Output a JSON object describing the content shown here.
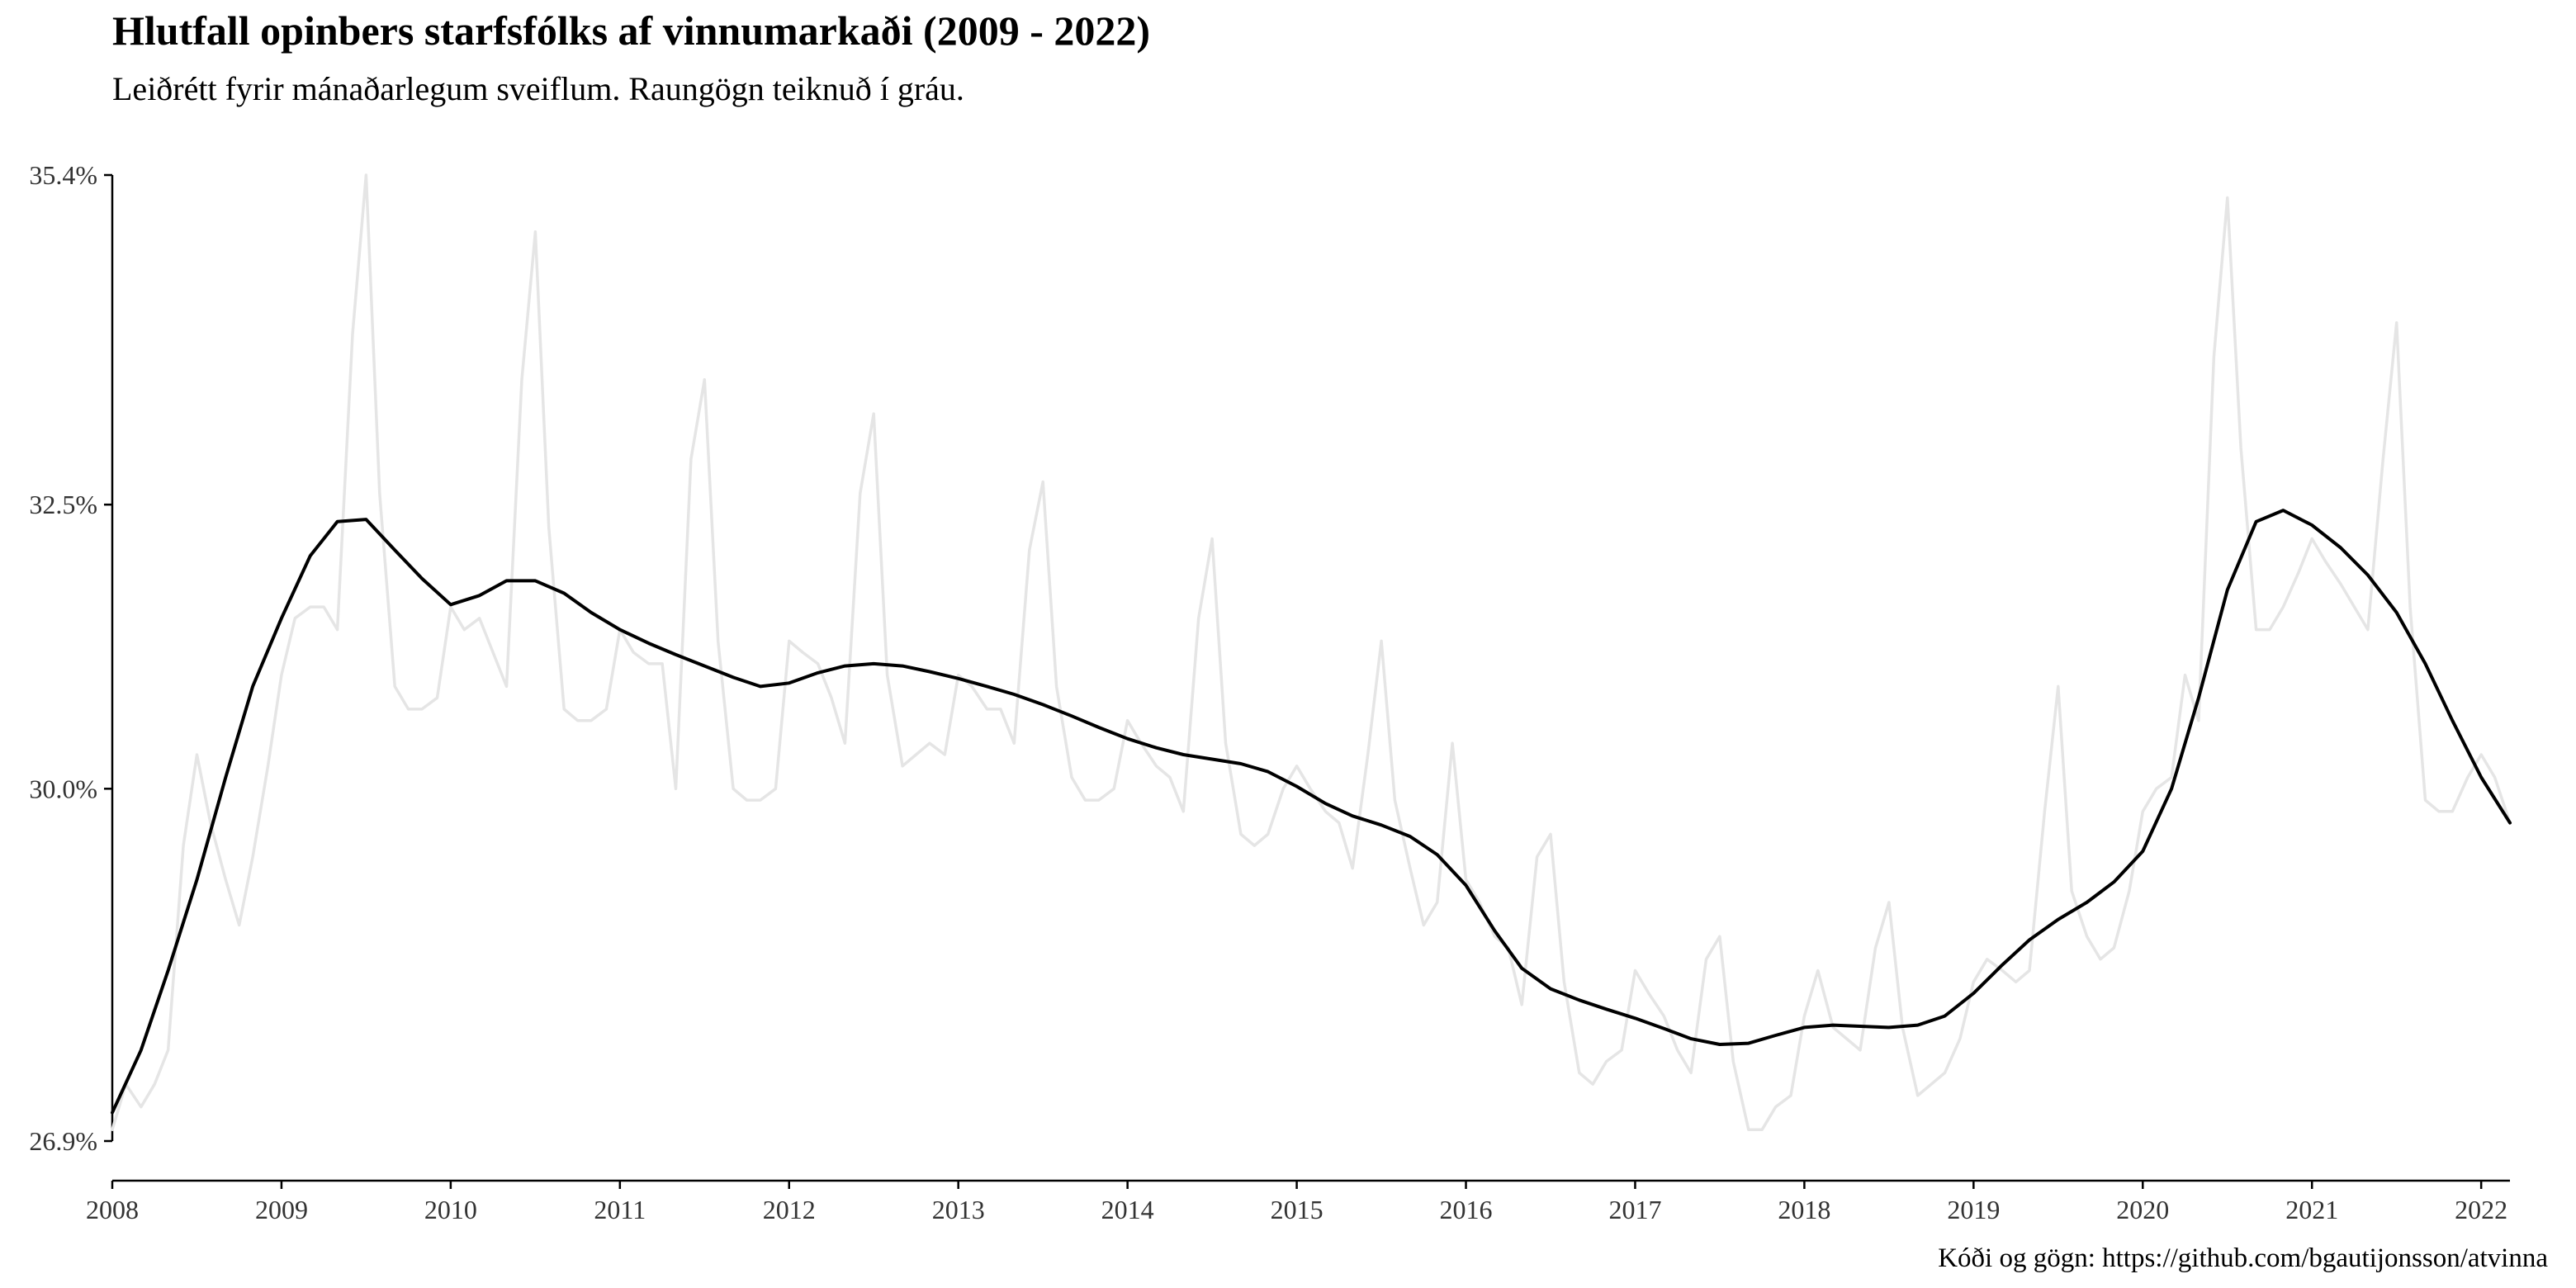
{
  "chart_data": {
    "type": "line",
    "title": "Hlutfall opinbers starfsfólks af vinnumarkaði (2009 - 2022)",
    "subtitle": "Leiðrétt fyrir mánaðarlegum sveiflum. Raungögn teiknuð í gráu.",
    "caption": "Kóði og gögn: https://github.com/bgautijonsson/atvinna",
    "xlabel": "",
    "ylabel": "",
    "x_unit": "year (decimal)",
    "xlim": [
      2008,
      2022.17
    ],
    "ylim": [
      26.9,
      35.4
    ],
    "x_ticks": [
      {
        "value": 2008,
        "label": "2008"
      },
      {
        "value": 2009,
        "label": "2009"
      },
      {
        "value": 2010,
        "label": "2010"
      },
      {
        "value": 2011,
        "label": "2011"
      },
      {
        "value": 2012,
        "label": "2012"
      },
      {
        "value": 2013,
        "label": "2013"
      },
      {
        "value": 2014,
        "label": "2014"
      },
      {
        "value": 2015,
        "label": "2015"
      },
      {
        "value": 2016,
        "label": "2016"
      },
      {
        "value": 2017,
        "label": "2017"
      },
      {
        "value": 2018,
        "label": "2018"
      },
      {
        "value": 2019,
        "label": "2019"
      },
      {
        "value": 2020,
        "label": "2020"
      },
      {
        "value": 2021,
        "label": "2021"
      },
      {
        "value": 2022,
        "label": "2022"
      }
    ],
    "y_ticks": [
      {
        "value": 26.9,
        "label": "26.9%"
      },
      {
        "value": 30.0,
        "label": "30.0%"
      },
      {
        "value": 32.5,
        "label": "32.5%"
      },
      {
        "value": 35.4,
        "label": "35.4%"
      }
    ],
    "grid": false,
    "series": [
      {
        "role": "raw",
        "color": "#e5e5e5",
        "points": [
          [
            2008.0,
            27.0
          ],
          [
            2008.08,
            27.4
          ],
          [
            2008.17,
            27.2
          ],
          [
            2008.25,
            27.4
          ],
          [
            2008.33,
            27.7
          ],
          [
            2008.42,
            29.5
          ],
          [
            2008.5,
            30.3
          ],
          [
            2008.58,
            29.7
          ],
          [
            2008.67,
            29.2
          ],
          [
            2008.75,
            28.8
          ],
          [
            2008.83,
            29.4
          ],
          [
            2008.92,
            30.2
          ],
          [
            2009.0,
            31.0
          ],
          [
            2009.08,
            31.5
          ],
          [
            2009.17,
            31.6
          ],
          [
            2009.25,
            31.6
          ],
          [
            2009.33,
            31.4
          ],
          [
            2009.42,
            34.0
          ],
          [
            2009.5,
            35.4
          ],
          [
            2009.58,
            32.6
          ],
          [
            2009.67,
            30.9
          ],
          [
            2009.75,
            30.7
          ],
          [
            2009.83,
            30.7
          ],
          [
            2009.92,
            30.8
          ],
          [
            2010.0,
            31.6
          ],
          [
            2010.08,
            31.4
          ],
          [
            2010.17,
            31.5
          ],
          [
            2010.25,
            31.2
          ],
          [
            2010.33,
            30.9
          ],
          [
            2010.42,
            33.6
          ],
          [
            2010.5,
            34.9
          ],
          [
            2010.58,
            32.3
          ],
          [
            2010.67,
            30.7
          ],
          [
            2010.75,
            30.6
          ],
          [
            2010.83,
            30.6
          ],
          [
            2010.92,
            30.7
          ],
          [
            2011.0,
            31.4
          ],
          [
            2011.08,
            31.2
          ],
          [
            2011.17,
            31.1
          ],
          [
            2011.25,
            31.1
          ],
          [
            2011.33,
            30.0
          ],
          [
            2011.42,
            32.9
          ],
          [
            2011.5,
            33.6
          ],
          [
            2011.58,
            31.3
          ],
          [
            2011.67,
            30.0
          ],
          [
            2011.75,
            29.9
          ],
          [
            2011.83,
            29.9
          ],
          [
            2011.92,
            30.0
          ],
          [
            2012.0,
            31.3
          ],
          [
            2012.08,
            31.2
          ],
          [
            2012.17,
            31.1
          ],
          [
            2012.25,
            30.8
          ],
          [
            2012.33,
            30.4
          ],
          [
            2012.42,
            32.6
          ],
          [
            2012.5,
            33.3
          ],
          [
            2012.58,
            31.0
          ],
          [
            2012.67,
            30.2
          ],
          [
            2012.75,
            30.3
          ],
          [
            2012.83,
            30.4
          ],
          [
            2012.92,
            30.3
          ],
          [
            2013.0,
            31.0
          ],
          [
            2013.08,
            30.9
          ],
          [
            2013.17,
            30.7
          ],
          [
            2013.25,
            30.7
          ],
          [
            2013.33,
            30.4
          ],
          [
            2013.42,
            32.1
          ],
          [
            2013.5,
            32.7
          ],
          [
            2013.58,
            30.9
          ],
          [
            2013.67,
            30.1
          ],
          [
            2013.75,
            29.9
          ],
          [
            2013.83,
            29.9
          ],
          [
            2013.92,
            30.0
          ],
          [
            2014.0,
            30.6
          ],
          [
            2014.08,
            30.4
          ],
          [
            2014.17,
            30.2
          ],
          [
            2014.25,
            30.1
          ],
          [
            2014.33,
            29.8
          ],
          [
            2014.42,
            31.5
          ],
          [
            2014.5,
            32.2
          ],
          [
            2014.58,
            30.4
          ],
          [
            2014.67,
            29.6
          ],
          [
            2014.75,
            29.5
          ],
          [
            2014.83,
            29.6
          ],
          [
            2014.92,
            30.0
          ],
          [
            2015.0,
            30.2
          ],
          [
            2015.08,
            30.0
          ],
          [
            2015.17,
            29.8
          ],
          [
            2015.25,
            29.7
          ],
          [
            2015.33,
            29.3
          ],
          [
            2015.42,
            30.3
          ],
          [
            2015.5,
            31.3
          ],
          [
            2015.58,
            29.9
          ],
          [
            2015.67,
            29.3
          ],
          [
            2015.75,
            28.8
          ],
          [
            2015.83,
            29.0
          ],
          [
            2015.92,
            30.4
          ],
          [
            2016.0,
            29.2
          ],
          [
            2016.08,
            29.0
          ],
          [
            2016.17,
            28.7
          ],
          [
            2016.25,
            28.6
          ],
          [
            2016.33,
            28.1
          ],
          [
            2016.42,
            29.4
          ],
          [
            2016.5,
            29.6
          ],
          [
            2016.58,
            28.3
          ],
          [
            2016.67,
            27.5
          ],
          [
            2016.75,
            27.4
          ],
          [
            2016.83,
            27.6
          ],
          [
            2016.92,
            27.7
          ],
          [
            2017.0,
            28.4
          ],
          [
            2017.08,
            28.2
          ],
          [
            2017.17,
            28.0
          ],
          [
            2017.25,
            27.7
          ],
          [
            2017.33,
            27.5
          ],
          [
            2017.42,
            28.5
          ],
          [
            2017.5,
            28.7
          ],
          [
            2017.58,
            27.6
          ],
          [
            2017.67,
            27.0
          ],
          [
            2017.75,
            27.0
          ],
          [
            2017.83,
            27.2
          ],
          [
            2017.92,
            27.3
          ],
          [
            2018.0,
            28.0
          ],
          [
            2018.08,
            28.4
          ],
          [
            2018.17,
            27.9
          ],
          [
            2018.25,
            27.8
          ],
          [
            2018.33,
            27.7
          ],
          [
            2018.42,
            28.6
          ],
          [
            2018.5,
            29.0
          ],
          [
            2018.58,
            27.9
          ],
          [
            2018.67,
            27.3
          ],
          [
            2018.75,
            27.4
          ],
          [
            2018.83,
            27.5
          ],
          [
            2018.92,
            27.8
          ],
          [
            2019.0,
            28.3
          ],
          [
            2019.08,
            28.5
          ],
          [
            2019.17,
            28.4
          ],
          [
            2019.25,
            28.3
          ],
          [
            2019.33,
            28.4
          ],
          [
            2019.42,
            29.8
          ],
          [
            2019.5,
            30.9
          ],
          [
            2019.58,
            29.1
          ],
          [
            2019.67,
            28.7
          ],
          [
            2019.75,
            28.5
          ],
          [
            2019.83,
            28.6
          ],
          [
            2019.92,
            29.1
          ],
          [
            2020.0,
            29.8
          ],
          [
            2020.08,
            30.0
          ],
          [
            2020.17,
            30.1
          ],
          [
            2020.25,
            31.0
          ],
          [
            2020.33,
            30.6
          ],
          [
            2020.42,
            33.8
          ],
          [
            2020.5,
            35.2
          ],
          [
            2020.58,
            33.0
          ],
          [
            2020.67,
            31.4
          ],
          [
            2020.75,
            31.4
          ],
          [
            2020.83,
            31.6
          ],
          [
            2020.92,
            31.9
          ],
          [
            2021.0,
            32.2
          ],
          [
            2021.08,
            32.0
          ],
          [
            2021.17,
            31.8
          ],
          [
            2021.25,
            31.6
          ],
          [
            2021.33,
            31.4
          ],
          [
            2021.42,
            32.9
          ],
          [
            2021.5,
            34.1
          ],
          [
            2021.58,
            31.6
          ],
          [
            2021.67,
            29.9
          ],
          [
            2021.75,
            29.8
          ],
          [
            2021.83,
            29.8
          ],
          [
            2021.92,
            30.1
          ],
          [
            2022.0,
            30.3
          ],
          [
            2022.08,
            30.1
          ],
          [
            2022.17,
            29.7
          ]
        ]
      },
      {
        "role": "trend",
        "color": "#000000",
        "points": [
          [
            2008.0,
            27.15
          ],
          [
            2008.17,
            27.7
          ],
          [
            2008.33,
            28.4
          ],
          [
            2008.5,
            29.2
          ],
          [
            2008.67,
            30.1
          ],
          [
            2008.83,
            30.9
          ],
          [
            2009.0,
            31.5
          ],
          [
            2009.17,
            32.05
          ],
          [
            2009.33,
            32.35
          ],
          [
            2009.5,
            32.37
          ],
          [
            2009.67,
            32.1
          ],
          [
            2009.83,
            31.85
          ],
          [
            2010.0,
            31.62
          ],
          [
            2010.17,
            31.7
          ],
          [
            2010.33,
            31.83
          ],
          [
            2010.5,
            31.83
          ],
          [
            2010.67,
            31.72
          ],
          [
            2010.83,
            31.55
          ],
          [
            2011.0,
            31.4
          ],
          [
            2011.17,
            31.28
          ],
          [
            2011.33,
            31.18
          ],
          [
            2011.5,
            31.08
          ],
          [
            2011.67,
            30.98
          ],
          [
            2011.83,
            30.9
          ],
          [
            2012.0,
            30.93
          ],
          [
            2012.17,
            31.02
          ],
          [
            2012.33,
            31.08
          ],
          [
            2012.5,
            31.1
          ],
          [
            2012.67,
            31.08
          ],
          [
            2012.83,
            31.03
          ],
          [
            2013.0,
            30.97
          ],
          [
            2013.17,
            30.9
          ],
          [
            2013.33,
            30.83
          ],
          [
            2013.5,
            30.74
          ],
          [
            2013.67,
            30.64
          ],
          [
            2013.83,
            30.54
          ],
          [
            2014.0,
            30.44
          ],
          [
            2014.17,
            30.36
          ],
          [
            2014.33,
            30.3
          ],
          [
            2014.5,
            30.26
          ],
          [
            2014.67,
            30.22
          ],
          [
            2014.83,
            30.15
          ],
          [
            2015.0,
            30.02
          ],
          [
            2015.17,
            29.87
          ],
          [
            2015.33,
            29.76
          ],
          [
            2015.5,
            29.68
          ],
          [
            2015.67,
            29.58
          ],
          [
            2015.83,
            29.42
          ],
          [
            2016.0,
            29.15
          ],
          [
            2016.17,
            28.75
          ],
          [
            2016.33,
            28.42
          ],
          [
            2016.5,
            28.24
          ],
          [
            2016.67,
            28.14
          ],
          [
            2016.83,
            28.06
          ],
          [
            2017.0,
            27.98
          ],
          [
            2017.17,
            27.89
          ],
          [
            2017.33,
            27.8
          ],
          [
            2017.5,
            27.75
          ],
          [
            2017.67,
            27.76
          ],
          [
            2017.83,
            27.83
          ],
          [
            2018.0,
            27.9
          ],
          [
            2018.17,
            27.92
          ],
          [
            2018.33,
            27.91
          ],
          [
            2018.5,
            27.9
          ],
          [
            2018.67,
            27.92
          ],
          [
            2018.83,
            28.0
          ],
          [
            2019.0,
            28.2
          ],
          [
            2019.17,
            28.45
          ],
          [
            2019.33,
            28.67
          ],
          [
            2019.5,
            28.85
          ],
          [
            2019.67,
            29.0
          ],
          [
            2019.83,
            29.18
          ],
          [
            2020.0,
            29.45
          ],
          [
            2020.17,
            30.0
          ],
          [
            2020.33,
            30.8
          ],
          [
            2020.5,
            31.75
          ],
          [
            2020.67,
            32.35
          ],
          [
            2020.83,
            32.45
          ],
          [
            2021.0,
            32.32
          ],
          [
            2021.17,
            32.12
          ],
          [
            2021.33,
            31.88
          ],
          [
            2021.5,
            31.55
          ],
          [
            2021.67,
            31.1
          ],
          [
            2021.83,
            30.6
          ],
          [
            2022.0,
            30.1
          ],
          [
            2022.17,
            29.7
          ]
        ]
      }
    ]
  }
}
